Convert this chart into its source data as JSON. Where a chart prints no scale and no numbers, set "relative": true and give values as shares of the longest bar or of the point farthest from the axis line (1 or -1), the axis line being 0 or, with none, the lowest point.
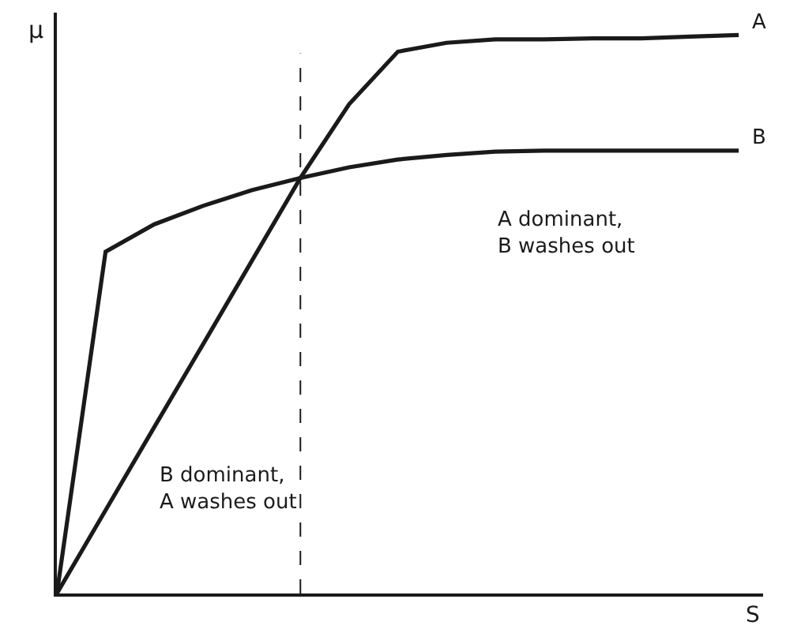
{
  "chart_data": {
    "type": "line",
    "relative": true,
    "xlabel": "S",
    "ylabel": "μ",
    "categories": [
      null,
      null,
      null,
      null,
      null,
      null,
      null,
      null,
      null,
      null,
      null,
      null,
      null,
      null,
      null
    ],
    "series": [
      {
        "name": "A",
        "color": "#1a1a1a",
        "values": [
          0,
          0.149,
          0.298,
          0.446,
          0.595,
          0.744,
          0.876,
          0.97,
          0.986,
          0.992,
          0.992,
          0.994,
          0.994,
          0.997,
          1
        ]
      },
      {
        "name": "B",
        "color": "#1a1a1a",
        "values": [
          0,
          0.612,
          0.661,
          0.694,
          0.722,
          0.744,
          0.763,
          0.777,
          0.785,
          0.791,
          0.793,
          0.793,
          0.793,
          0.793,
          0.793
        ]
      }
    ],
    "annotations": [
      "A dominant,\nB washes out",
      "B dominant,\nA washes out"
    ],
    "legend": false,
    "marker": "none",
    "line_style": "solid"
  }
}
